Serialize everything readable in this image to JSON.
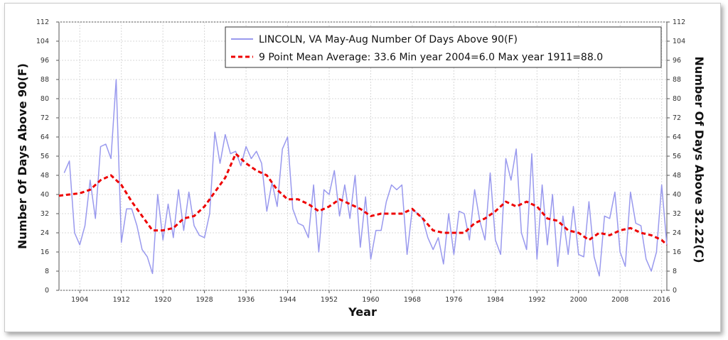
{
  "chart_data": {
    "type": "line",
    "xlabel": "Year",
    "ylabel_left": "Number Of Days Above 90(F)",
    "ylabel_right": "Number Of Days Above 32.22(C)",
    "xlim": [
      1900,
      2017
    ],
    "ylim": [
      0,
      112
    ],
    "x_ticks": [
      1904,
      1912,
      1920,
      1928,
      1936,
      1944,
      1952,
      1960,
      1968,
      1976,
      1984,
      1992,
      2000,
      2008,
      2016
    ],
    "y_ticks": [
      0,
      8,
      16,
      24,
      32,
      40,
      48,
      56,
      64,
      72,
      80,
      88,
      96,
      104,
      112
    ],
    "grid": true,
    "legend_position": "top-right",
    "legend": [
      "LINCOLN, VA  May-Aug  Number Of Days Above 90(F)",
      "9 Point Mean  Average: 33.6  Min year 2004=6.0  Max year 1911=88.0"
    ],
    "series": [
      {
        "name": "LINCOLN, VA  May-Aug  Number Of Days Above 90(F)",
        "color": "#9999ee",
        "style": "solid",
        "x": [
          1901,
          1902,
          1903,
          1904,
          1905,
          1906,
          1907,
          1908,
          1909,
          1910,
          1911,
          1912,
          1913,
          1914,
          1915,
          1916,
          1917,
          1918,
          1919,
          1920,
          1921,
          1922,
          1923,
          1924,
          1925,
          1926,
          1927,
          1928,
          1929,
          1930,
          1931,
          1932,
          1933,
          1934,
          1935,
          1936,
          1937,
          1938,
          1939,
          1940,
          1941,
          1942,
          1943,
          1944,
          1945,
          1946,
          1947,
          1948,
          1949,
          1950,
          1951,
          1952,
          1953,
          1954,
          1955,
          1956,
          1957,
          1958,
          1959,
          1960,
          1961,
          1962,
          1963,
          1964,
          1965,
          1966,
          1967,
          1968,
          1969,
          1970,
          1971,
          1972,
          1973,
          1974,
          1975,
          1976,
          1977,
          1978,
          1979,
          1980,
          1981,
          1982,
          1983,
          1984,
          1985,
          1986,
          1987,
          1988,
          1989,
          1990,
          1991,
          1992,
          1993,
          1994,
          1995,
          1996,
          1997,
          1998,
          1999,
          2000,
          2001,
          2002,
          2003,
          2004,
          2005,
          2006,
          2007,
          2008,
          2009,
          2010,
          2011,
          2012,
          2013,
          2014,
          2015,
          2016,
          2017
        ],
        "y": [
          49,
          54,
          24,
          19,
          27,
          46,
          30,
          60,
          61,
          55,
          88,
          20,
          34,
          34,
          27,
          17,
          14,
          7,
          40,
          21,
          36,
          22,
          42,
          25,
          41,
          27,
          23,
          22,
          32,
          66,
          53,
          65,
          57,
          58,
          52,
          60,
          55,
          58,
          53,
          33,
          45,
          35,
          59,
          64,
          34,
          28,
          27,
          22,
          44,
          16,
          42,
          40,
          50,
          31,
          44,
          30,
          48,
          18,
          39,
          13,
          25,
          25,
          37,
          44,
          42,
          44,
          15,
          34,
          32,
          30,
          22,
          17,
          22,
          11,
          32,
          15,
          33,
          32,
          21,
          42,
          29,
          21,
          49,
          21,
          15,
          55,
          46,
          59,
          24,
          17,
          57,
          13,
          44,
          19,
          40,
          10,
          31,
          15,
          35,
          15,
          14,
          37,
          14,
          6,
          31,
          30,
          41,
          16,
          10,
          41,
          28,
          27,
          13,
          8,
          16,
          44,
          19
        ]
      },
      {
        "name": "9 Point Mean  Average: 33.6  Min year 2004=6.0  Max year 1911=88.0",
        "color": "#ee0000",
        "style": "dashed",
        "x": [
          1900,
          1902,
          1904,
          1906,
          1908,
          1910,
          1912,
          1914,
          1916,
          1918,
          1920,
          1922,
          1924,
          1926,
          1928,
          1930,
          1932,
          1934,
          1936,
          1938,
          1940,
          1942,
          1944,
          1946,
          1948,
          1950,
          1952,
          1954,
          1956,
          1958,
          1960,
          1962,
          1964,
          1966,
          1968,
          1970,
          1972,
          1974,
          1976,
          1978,
          1980,
          1982,
          1984,
          1986,
          1988,
          1990,
          1992,
          1994,
          1996,
          1998,
          2000,
          2002,
          2004,
          2006,
          2008,
          2010,
          2012,
          2014,
          2016,
          2017
        ],
        "y": [
          39.5,
          40,
          40.5,
          42,
          46,
          48,
          44,
          37,
          31,
          25,
          25,
          26,
          30,
          31,
          35,
          41,
          47,
          57,
          53,
          50,
          48,
          42,
          38,
          38,
          36,
          33,
          35,
          38,
          36,
          34,
          31,
          32,
          32,
          32,
          34,
          30,
          25,
          24,
          24,
          24,
          28,
          30,
          33,
          37,
          35,
          37,
          35,
          30,
          29,
          25,
          24,
          21,
          24,
          23,
          25,
          26,
          24,
          23,
          21,
          19
        ]
      }
    ]
  }
}
